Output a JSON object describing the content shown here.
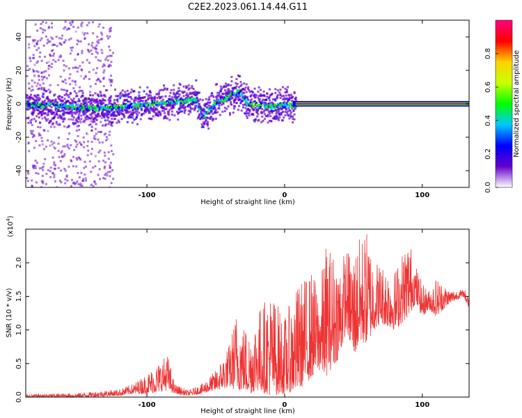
{
  "figure": {
    "title": "C2E2.2023.061.14.44.G11"
  },
  "colorbar": {
    "label": "Normalized spectral amplitude",
    "range": [
      0.0,
      1.0
    ],
    "ticks": [
      "0.0",
      "0.2",
      "0.4",
      "0.6",
      "0.8"
    ],
    "tick_values": [
      0.0,
      0.2,
      0.4,
      0.6,
      0.8
    ],
    "colors": [
      "#ffffff",
      "#6600cc",
      "#0000ff",
      "#00c8ff",
      "#00ff00",
      "#c8ff00",
      "#ffd200",
      "#ff0000",
      "#ff0080"
    ]
  },
  "chart_data": [
    {
      "type": "heatmap",
      "title": "",
      "xlabel": "Height of straight line (km)",
      "ylabel": "Frequency (Hz)",
      "xlim": [
        -188,
        134
      ],
      "ylim": [
        -50,
        50
      ],
      "xticks": [
        -100,
        0,
        100
      ],
      "xtick_labels": [
        "-100",
        "0",
        "100"
      ],
      "yticks": [
        -40,
        -20,
        0,
        20,
        40
      ],
      "ytick_labels": [
        "-40",
        "-20",
        "0",
        "20",
        "40"
      ],
      "grid": false,
      "carrier_frequency_hz": 0,
      "carrier_start_km": 8,
      "ridge": {
        "x": [
          -188,
          -160,
          -140,
          -120,
          -100,
          -80,
          -65,
          -60,
          -50,
          -40,
          -33,
          -28,
          -20,
          -10,
          0,
          8
        ],
        "y": [
          0,
          -1,
          -2,
          -1,
          0,
          2,
          3,
          -8,
          2,
          5,
          8,
          1,
          0,
          -1,
          0,
          0
        ]
      },
      "noise_region_km": [
        -188,
        -140
      ]
    },
    {
      "type": "line",
      "title": "",
      "xlabel": "Height of straight line (km)",
      "ylabel": "SNR (10 * v/v)",
      "y_multiplier_label": "(x10",
      "y_multiplier_exp": "4",
      "y_multiplier_close": ")",
      "xlim": [
        -188,
        134
      ],
      "ylim": [
        0,
        2.5
      ],
      "xticks": [
        -100,
        0,
        100
      ],
      "xtick_labels": [
        "-100",
        "0",
        "100"
      ],
      "yticks": [
        0.0,
        0.5,
        1.0,
        1.5,
        2.0
      ],
      "ytick_labels": [
        "0.0",
        "0.5",
        "1.0",
        "1.5",
        "2.0"
      ],
      "grid": false,
      "color": "#ee3333",
      "envelope": {
        "x": [
          -188,
          -150,
          -120,
          -110,
          -100,
          -90,
          -85,
          -80,
          -70,
          -60,
          -50,
          -40,
          -35,
          -30,
          -25,
          -20,
          -10,
          0,
          10,
          20,
          25,
          30,
          40,
          45,
          50,
          55,
          60,
          65,
          70,
          80,
          90,
          95,
          100,
          105,
          110,
          120,
          130,
          134
        ],
        "lo": [
          0.0,
          0.0,
          0.02,
          0.05,
          0.05,
          0.08,
          0.1,
          0.05,
          0.02,
          0.05,
          0.1,
          0.15,
          0.1,
          0.1,
          0.05,
          0.1,
          0.02,
          0.05,
          0.1,
          0.3,
          0.4,
          0.3,
          0.6,
          1.0,
          0.6,
          0.8,
          0.8,
          1.0,
          1.1,
          1.0,
          1.2,
          1.4,
          1.2,
          1.3,
          1.2,
          1.4,
          1.5,
          1.3
        ],
        "hi": [
          0.04,
          0.06,
          0.12,
          0.2,
          0.35,
          0.55,
          0.65,
          0.2,
          0.1,
          0.2,
          0.4,
          0.8,
          1.3,
          1.1,
          1.0,
          1.3,
          1.6,
          1.2,
          1.7,
          1.9,
          1.6,
          2.3,
          2.1,
          2.2,
          2.2,
          2.4,
          2.5,
          2.1,
          2.0,
          1.9,
          2.4,
          2.0,
          1.7,
          1.6,
          1.8,
          1.6,
          1.6,
          1.6
        ]
      }
    }
  ]
}
